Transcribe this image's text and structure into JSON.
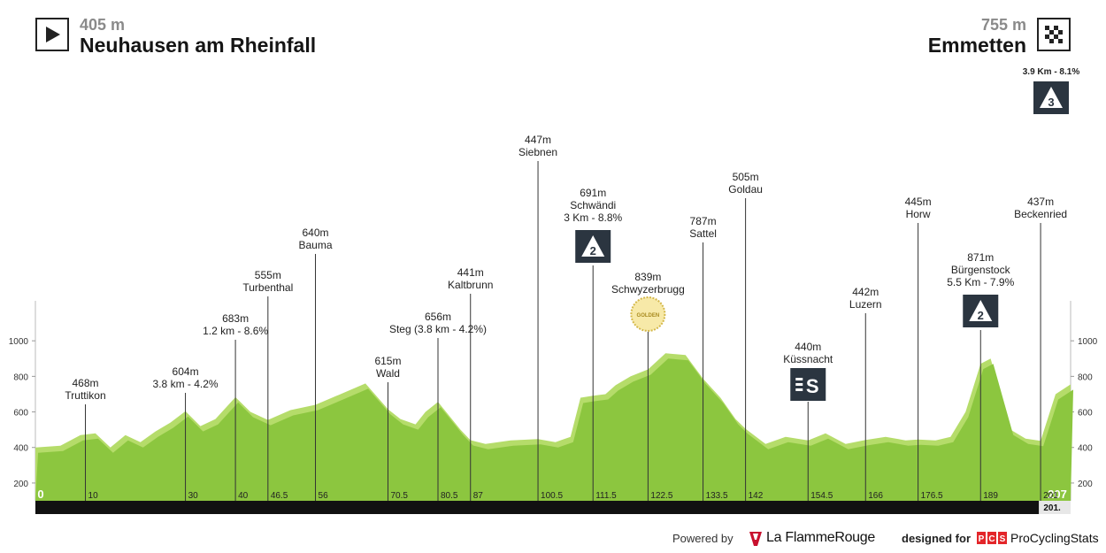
{
  "header": {
    "start": {
      "altitude": "405 m",
      "town": "Neuhausen am Rheinfall",
      "flag_icon": "start-flag-icon"
    },
    "finish": {
      "altitude": "755 m",
      "town": "Emmetten",
      "flag_icon": "finish-flag-icon"
    }
  },
  "footer": {
    "powered_by": "Powered by",
    "lfr_name": "La FlammeRouge",
    "designed_for": "designed for",
    "pcs_logo_text": "PCS",
    "pcs_name": "ProCyclingStats"
  },
  "colors": {
    "profile_fill": "#8cc63f",
    "profile_highlight": "#b5dc6a",
    "axis_bar": "#111111",
    "climb_badge": "#2b3540",
    "sprint_badge": "#2b3540",
    "lfr_red": "#c8102e",
    "pcs_red": "#e3262a"
  },
  "chart_data": {
    "type": "area",
    "title": "",
    "xlabel": "",
    "ylabel": "",
    "xlim": [
      0,
      207
    ],
    "ylim": [
      100,
      1200
    ],
    "y_ticks": [
      200,
      400,
      600,
      800,
      1000
    ],
    "x_tick_labels": [
      "0",
      "10",
      "30",
      "40",
      "46.5",
      "56",
      "70.5",
      "80.5",
      "87",
      "100.5",
      "111.5",
      "122.5",
      "133.5",
      "142",
      "154.5",
      "166",
      "176.5",
      "189",
      "207"
    ],
    "x_end_label": "201.",
    "grid": false,
    "legend": "none",
    "profile": {
      "x": [
        0,
        5,
        9,
        12,
        15,
        18,
        21,
        24,
        27,
        30,
        33,
        36,
        40,
        43,
        46.5,
        51,
        56,
        61,
        66,
        70.5,
        73,
        76,
        78,
        80.5,
        83,
        85,
        87,
        90,
        95,
        100.5,
        104,
        107,
        109,
        111.5,
        114,
        116,
        119,
        122.5,
        126,
        130,
        133.5,
        137,
        140,
        142,
        146,
        150,
        154.5,
        158,
        162,
        166,
        170,
        174,
        176.5,
        180,
        183,
        186,
        189,
        191,
        193,
        195,
        198,
        201,
        204,
        207
      ],
      "y": [
        400,
        410,
        470,
        480,
        400,
        470,
        430,
        490,
        540,
        604,
        520,
        560,
        683,
        600,
        555,
        610,
        640,
        700,
        760,
        615,
        560,
        530,
        600,
        656,
        570,
        500,
        441,
        420,
        440,
        447,
        430,
        460,
        680,
        691,
        700,
        750,
        800,
        839,
        930,
        920,
        787,
        680,
        560,
        505,
        420,
        460,
        440,
        480,
        420,
        442,
        460,
        440,
        445,
        440,
        460,
        600,
        871,
        900,
        700,
        500,
        450,
        437,
        700,
        755
      ]
    },
    "points": [
      {
        "km": "10",
        "x": 10,
        "alt": "468m",
        "name": "Truttikon",
        "extra": ""
      },
      {
        "km": "30",
        "x": 30,
        "alt": "604m",
        "name": "",
        "extra": "3.8 km - 4.2%"
      },
      {
        "km": "40",
        "x": 40,
        "alt": "683m",
        "name": "",
        "extra": "1.2 km - 8.6%"
      },
      {
        "km": "46.5",
        "x": 46.5,
        "alt": "555m",
        "name": "Turbenthal",
        "extra": ""
      },
      {
        "km": "56",
        "x": 56,
        "alt": "640m",
        "name": "Bauma",
        "extra": ""
      },
      {
        "km": "70.5",
        "x": 70.5,
        "alt": "615m",
        "name": "Wald",
        "extra": ""
      },
      {
        "km": "80.5",
        "x": 80.5,
        "alt": "656m",
        "name": "Steg (3.8 km - 4.2%)",
        "extra": ""
      },
      {
        "km": "87",
        "x": 87,
        "alt": "441m",
        "name": "Kaltbrunn",
        "extra": ""
      },
      {
        "km": "100.5",
        "x": 100.5,
        "alt": "447m",
        "name": "Siebnen",
        "extra": ""
      },
      {
        "km": "111.5",
        "x": 111.5,
        "alt": "691m",
        "name": "Schwändi",
        "extra": "3 Km - 8.8%",
        "badge": "climb",
        "category": "2"
      },
      {
        "km": "122.5",
        "x": 122.5,
        "alt": "839m",
        "name": "Schwyzerbrugg",
        "extra": "",
        "badge": "golden"
      },
      {
        "km": "133.5",
        "x": 133.5,
        "alt": "787m",
        "name": "Sattel",
        "extra": ""
      },
      {
        "km": "142",
        "x": 142,
        "alt": "505m",
        "name": "Goldau",
        "extra": ""
      },
      {
        "km": "154.5",
        "x": 154.5,
        "alt": "440m",
        "name": "Küssnacht",
        "extra": "",
        "badge": "sprint"
      },
      {
        "km": "166",
        "x": 166,
        "alt": "442m",
        "name": "Luzern",
        "extra": ""
      },
      {
        "km": "176.5",
        "x": 176.5,
        "alt": "445m",
        "name": "Horw",
        "extra": ""
      },
      {
        "km": "189",
        "x": 189,
        "alt": "871m",
        "name": "Bürgenstock",
        "extra": "5.5 Km - 7.9%",
        "badge": "climb",
        "category": "2"
      },
      {
        "km": "201",
        "x": 201,
        "alt": "437m",
        "name": "Beckenried",
        "extra": ""
      }
    ],
    "finish_climb": {
      "extra": "3.9 Km - 8.1%",
      "category": "3"
    },
    "golden_badge_text": "GOLDEN"
  }
}
